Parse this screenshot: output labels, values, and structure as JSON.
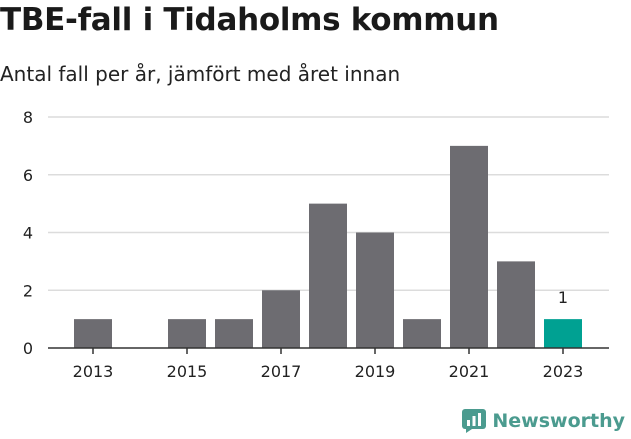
{
  "title": "TBE-fall i Tidaholms kommun",
  "subtitle": "Antal fall per år, jämfört med året innan",
  "brand": "Newsworthy",
  "colors": {
    "bar": "#6d6c71",
    "highlight": "#00a192",
    "grid": "#dcdcdc",
    "brand": "#4b9b8f"
  },
  "chart_data": {
    "type": "bar",
    "categories": [
      "2013",
      "2014",
      "2015",
      "2016",
      "2017",
      "2018",
      "2019",
      "2020",
      "2021",
      "2022",
      "2023"
    ],
    "values": [
      1,
      0,
      1,
      1,
      2,
      5,
      4,
      1,
      7,
      3,
      1
    ],
    "x_tick_labels": [
      "2013",
      "2015",
      "2017",
      "2019",
      "2021",
      "2023"
    ],
    "y_ticks": [
      0,
      2,
      4,
      6,
      8
    ],
    "ylim": [
      0,
      8
    ],
    "highlight_index": 10,
    "data_labels": [
      {
        "index": 10,
        "text": "1"
      }
    ],
    "grid": true
  }
}
